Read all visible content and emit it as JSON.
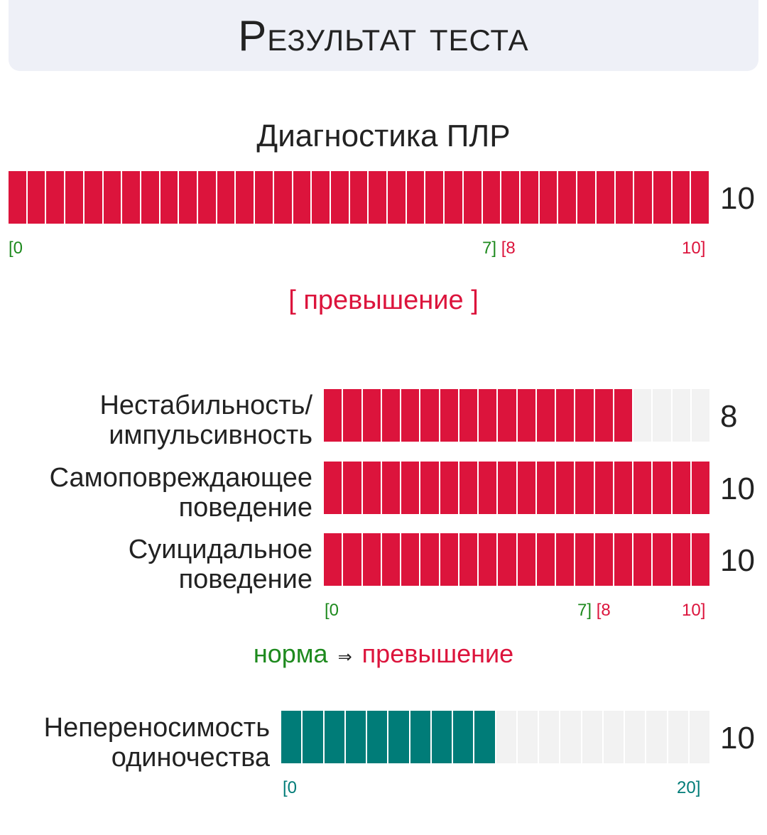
{
  "header": {
    "title": "Результат теста"
  },
  "main": {
    "title": "Диагностика ПЛР",
    "score": "10",
    "value": 10,
    "max": 10,
    "ticks": {
      "start": "[0",
      "mid": "7][8",
      "end": "10]"
    },
    "status": "[ превышение ]"
  },
  "subscales": [
    {
      "label_line1": "Нестабильность/",
      "label_line2": "импульсивность",
      "score": "8",
      "value": 8,
      "max": 10
    },
    {
      "label_line1": "Самоповреждающее",
      "label_line2": "поведение",
      "score": "10",
      "value": 10,
      "max": 10
    },
    {
      "label_line1": "Суицидальное",
      "label_line2": "поведение",
      "score": "10",
      "value": 10,
      "max": 10
    }
  ],
  "subscale_ticks": {
    "start": "[0",
    "mid": "7][8",
    "end": "10]"
  },
  "legend": {
    "norm": "норма",
    "arrow": "⇒",
    "excess": "превышение"
  },
  "loneliness": {
    "label_line1": "Непереносимость",
    "label_line2": "одиночества",
    "score": "10",
    "value": 10,
    "max": 20,
    "ticks": {
      "start": "[0",
      "end": "20]"
    }
  },
  "colors": {
    "red": "#dc143c",
    "teal": "#007c78",
    "green": "#1e8a1e",
    "empty": "#f2f2f2",
    "header_bg": "#eef0f7"
  }
}
